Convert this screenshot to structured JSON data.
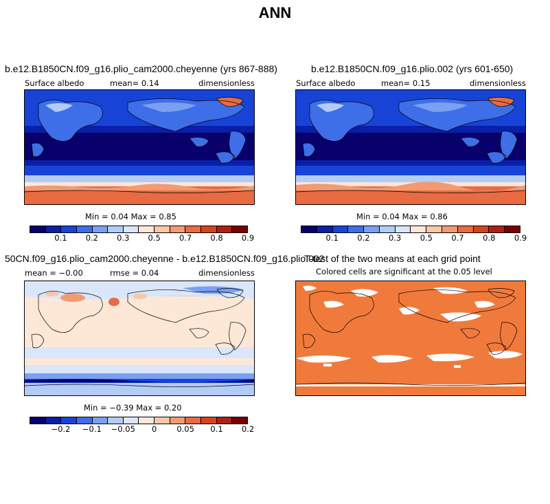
{
  "title": "ANN",
  "colors": {
    "albedo_scale": [
      "#08006b",
      "#0a1fa8",
      "#1744d6",
      "#3e6ee8",
      "#7ba0f0",
      "#b3ccf7",
      "#d9e6fb",
      "#fde8d8",
      "#f8c7a8",
      "#f29a72",
      "#e86b42",
      "#d84318",
      "#b02010",
      "#7a0000"
    ],
    "diff_scale": [
      "#08006b",
      "#0a1fa8",
      "#1744d6",
      "#3e6ee8",
      "#7ba0f0",
      "#b3ccf7",
      "#d9e6fb",
      "#fde8d8",
      "#f8c7a8",
      "#f29a72",
      "#e86b42",
      "#d84318",
      "#b02010",
      "#7a0000"
    ],
    "ttest_fill": "#f07a3c"
  },
  "panels": {
    "p1": {
      "title": "b.e12.B1850CN.f09_g16.plio_cam2000.cheyenne (yrs 867-888)",
      "variable": "Surface albedo",
      "stat": "mean=   0.14",
      "units": "dimensionless",
      "minmax": "Min =   0.04 Max =    0.85"
    },
    "p2": {
      "title": "b.e12.B1850CN.f09_g16.plio.002 (yrs 601-650)",
      "variable": "Surface albedo",
      "stat": "mean=   0.15",
      "units": "dimensionless",
      "minmax": "Min =   0.04 Max =    0.86"
    },
    "p3": {
      "title": "50CN.f09_g16.plio_cam2000.cheyenne - b.e12.B1850CN.f09_g16.plio.002",
      "variable": "mean =  −0.00",
      "stat": "rmse =   0.04",
      "units": "dimensionless",
      "minmax": "Min =  −0.39 Max =    0.20"
    },
    "p4": {
      "title": "T-test of the two means at each grid point",
      "subtitle": "Colored cells are significant at the 0.05 level"
    }
  },
  "colorbars": {
    "albedo_labels": [
      "0.1",
      "0.2",
      "0.3",
      "0.5",
      "0.7",
      "0.8",
      "0.9"
    ],
    "diff_labels": [
      "−0.2",
      "−0.1",
      "−0.05",
      "0",
      "0.05",
      "0.1",
      "0.2"
    ]
  },
  "chart_data": [
    {
      "type": "heatmap",
      "title": "b.e12.B1850CN.f09_g16.plio_cam2000.cheyenne (yrs 867-888)",
      "variable": "Surface albedo",
      "units": "dimensionless",
      "mean": 0.14,
      "min": 0.04,
      "max": 0.85,
      "colorbar_ticks": [
        0.1,
        0.2,
        0.3,
        0.5,
        0.7,
        0.8,
        0.9
      ]
    },
    {
      "type": "heatmap",
      "title": "b.e12.B1850CN.f09_g16.plio.002 (yrs 601-650)",
      "variable": "Surface albedo",
      "units": "dimensionless",
      "mean": 0.15,
      "min": 0.04,
      "max": 0.86,
      "colorbar_ticks": [
        0.1,
        0.2,
        0.3,
        0.5,
        0.7,
        0.8,
        0.9
      ]
    },
    {
      "type": "heatmap",
      "title": "50CN.f09_g16.plio_cam2000.cheyenne - b.e12.B1850CN.f09_g16.plio.002",
      "units": "dimensionless",
      "mean": -0.0,
      "rmse": 0.04,
      "min": -0.39,
      "max": 0.2,
      "colorbar_ticks": [
        -0.2,
        -0.1,
        -0.05,
        0,
        0.05,
        0.1,
        0.2
      ]
    },
    {
      "type": "heatmap",
      "title": "T-test of the two means at each grid point",
      "subtitle": "Colored cells are significant at the 0.05 level"
    }
  ]
}
